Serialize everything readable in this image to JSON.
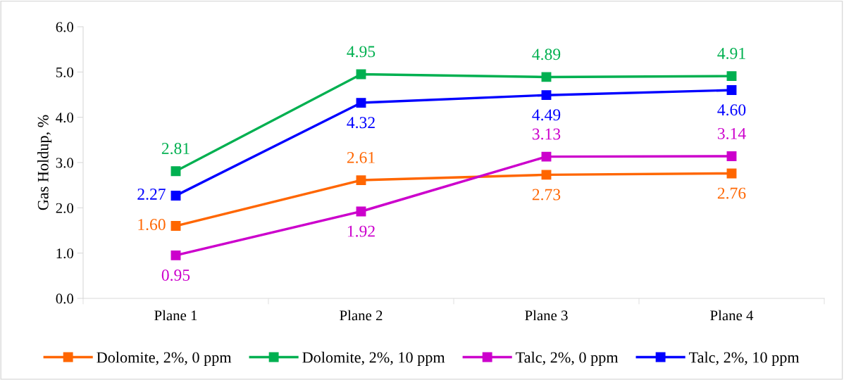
{
  "chart_data": {
    "type": "line",
    "ylabel": "Gas Holdup, %",
    "categories": [
      "Plane 1",
      "Plane 2",
      "Plane 3",
      "Plane 4"
    ],
    "series": [
      {
        "name": "Dolomite, 2%, 0 ppm",
        "color": "#ff6600",
        "values": [
          1.6,
          2.61,
          2.73,
          2.76
        ],
        "value_labels": [
          "1.60",
          "2.61",
          "2.73",
          "2.76"
        ]
      },
      {
        "name": "Dolomite, 2%, 10 ppm",
        "color": "#00b050",
        "values": [
          2.81,
          4.95,
          4.89,
          4.91
        ],
        "value_labels": [
          "2.81",
          "4.95",
          "4.89",
          "4.91"
        ]
      },
      {
        "name": "Talc, 2%, 0 ppm",
        "color": "#cc00cc",
        "values": [
          0.95,
          1.92,
          3.13,
          3.14
        ],
        "value_labels": [
          "0.95",
          "1.92",
          "3.13",
          "3.14"
        ]
      },
      {
        "name": "Talc, 2%, 10 ppm",
        "color": "#0000ff",
        "values": [
          2.27,
          4.32,
          4.49,
          4.6
        ],
        "value_labels": [
          "2.27",
          "4.32",
          "4.49",
          "4.60"
        ]
      }
    ],
    "ylim": [
      0,
      6
    ],
    "yticks": [
      {
        "value": 0,
        "label": "0.0"
      },
      {
        "value": 1,
        "label": "1.0"
      },
      {
        "value": 2,
        "label": "2.0"
      },
      {
        "value": 3,
        "label": "3.0"
      },
      {
        "value": 4,
        "label": "4.0"
      },
      {
        "value": 5,
        "label": "5.0"
      },
      {
        "value": 6,
        "label": "6.0"
      }
    ],
    "grid": false,
    "legend": "bottom",
    "marker": "square",
    "line_style": "solid"
  }
}
